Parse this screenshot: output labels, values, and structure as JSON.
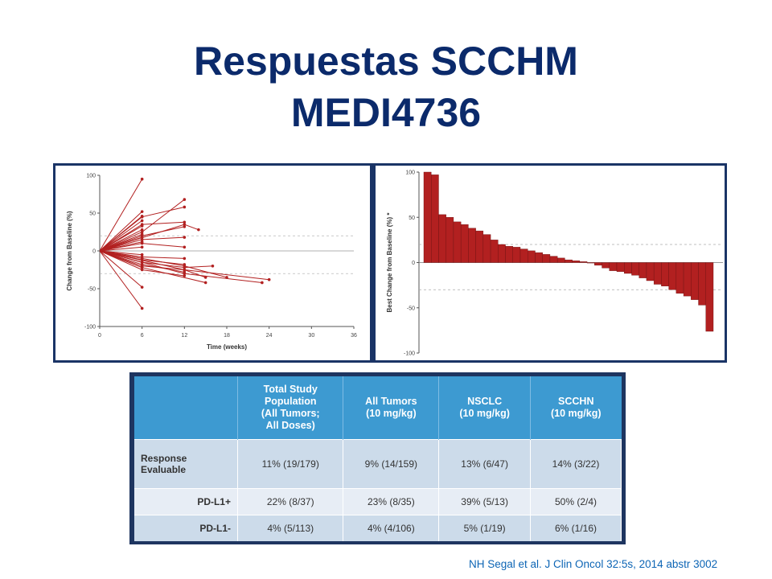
{
  "slide": {
    "title_line1": "Respuestas SCCHM",
    "title_line2": "MEDI4736",
    "citation": "NH Segal et al. J Clin Oncol 32:5s, 2014 abstr 3002",
    "colors": {
      "title": "#0b2a6b",
      "chart_red": "#b22020",
      "table_header": "#3d9ad1",
      "citation": "#0d65b5"
    }
  },
  "chart_data": [
    {
      "type": "line",
      "title": "",
      "xlabel": "Time (weeks)",
      "ylabel": "Change from Baseline (%)",
      "xlim": [
        0,
        36
      ],
      "ylim": [
        -100,
        100
      ],
      "xticks": [
        0,
        6,
        12,
        18,
        24,
        30,
        36
      ],
      "yticks": [
        -100,
        -50,
        0,
        50,
        100
      ],
      "reference_lines": [
        20,
        -30
      ],
      "series": [
        {
          "x": [
            0,
            6
          ],
          "y": [
            0,
            95
          ]
        },
        {
          "x": [
            0,
            6
          ],
          "y": [
            0,
            52
          ]
        },
        {
          "x": [
            0,
            6
          ],
          "y": [
            0,
            46
          ]
        },
        {
          "x": [
            0,
            6
          ],
          "y": [
            0,
            40
          ]
        },
        {
          "x": [
            0,
            6
          ],
          "y": [
            0,
            33
          ]
        },
        {
          "x": [
            0,
            6
          ],
          "y": [
            0,
            28
          ]
        },
        {
          "x": [
            0,
            6
          ],
          "y": [
            0,
            22
          ]
        },
        {
          "x": [
            0,
            6
          ],
          "y": [
            0,
            18
          ]
        },
        {
          "x": [
            0,
            6
          ],
          "y": [
            0,
            12
          ]
        },
        {
          "x": [
            0,
            6
          ],
          "y": [
            0,
            5
          ]
        },
        {
          "x": [
            0,
            6
          ],
          "y": [
            0,
            -5
          ]
        },
        {
          "x": [
            0,
            6
          ],
          "y": [
            0,
            -10
          ]
        },
        {
          "x": [
            0,
            6
          ],
          "y": [
            0,
            -15
          ]
        },
        {
          "x": [
            0,
            6
          ],
          "y": [
            0,
            -22
          ]
        },
        {
          "x": [
            0,
            6
          ],
          "y": [
            0,
            -48
          ]
        },
        {
          "x": [
            0,
            6
          ],
          "y": [
            0,
            -76
          ]
        },
        {
          "x": [
            0,
            6,
            12
          ],
          "y": [
            0,
            25,
            68
          ]
        },
        {
          "x": [
            0,
            6,
            12
          ],
          "y": [
            0,
            45,
            58
          ]
        },
        {
          "x": [
            0,
            6,
            12
          ],
          "y": [
            0,
            35,
            38
          ]
        },
        {
          "x": [
            0,
            6,
            12
          ],
          "y": [
            0,
            20,
            32
          ]
        },
        {
          "x": [
            0,
            6,
            12
          ],
          "y": [
            0,
            15,
            18
          ]
        },
        {
          "x": [
            0,
            6,
            12
          ],
          "y": [
            0,
            10,
            5
          ]
        },
        {
          "x": [
            0,
            6,
            12
          ],
          "y": [
            0,
            -8,
            -10
          ]
        },
        {
          "x": [
            0,
            6,
            12
          ],
          "y": [
            0,
            -12,
            -18
          ]
        },
        {
          "x": [
            0,
            6,
            12
          ],
          "y": [
            0,
            -18,
            -28
          ]
        },
        {
          "x": [
            0,
            6,
            12
          ],
          "y": [
            0,
            -25,
            -33
          ]
        },
        {
          "x": [
            0,
            12,
            14
          ],
          "y": [
            0,
            35,
            28
          ]
        },
        {
          "x": [
            0,
            6,
            12,
            16
          ],
          "y": [
            0,
            -15,
            -22,
            -20
          ]
        },
        {
          "x": [
            0,
            6,
            12,
            15
          ],
          "y": [
            0,
            -20,
            -25,
            -35
          ]
        },
        {
          "x": [
            0,
            6,
            15
          ],
          "y": [
            0,
            -22,
            -42
          ]
        },
        {
          "x": [
            0,
            12,
            18
          ],
          "y": [
            0,
            -20,
            -35
          ]
        },
        {
          "x": [
            0,
            12,
            24
          ],
          "y": [
            0,
            -25,
            -38
          ]
        },
        {
          "x": [
            0,
            12,
            23
          ],
          "y": [
            0,
            -30,
            -42
          ]
        }
      ]
    },
    {
      "type": "bar",
      "title": "",
      "xlabel": "",
      "ylabel": "Best Change from Baseline (%) *",
      "ylim": [
        -100,
        100
      ],
      "yticks": [
        -100,
        -50,
        0,
        50,
        100
      ],
      "reference_lines": [
        20,
        -30
      ],
      "values": [
        100,
        97,
        53,
        50,
        45,
        42,
        38,
        35,
        31,
        25,
        20,
        18,
        17,
        15,
        13,
        11,
        9,
        7,
        5,
        3,
        2,
        1,
        0,
        -3,
        -6,
        -9,
        -10,
        -12,
        -14,
        -17,
        -20,
        -24,
        -26,
        -30,
        -34,
        -37,
        -41,
        -47,
        -76
      ]
    }
  ],
  "table": {
    "headers": [
      "",
      "Total Study\nPopulation\n(All Tumors;\nAll Doses)",
      "All Tumors\n(10 mg/kg)",
      "NSCLC\n(10 mg/kg)",
      "SCCHN\n(10 mg/kg)"
    ],
    "rows": [
      {
        "label": "Response\nEvaluable",
        "cells": [
          "11% (19/179)",
          "9% (14/159)",
          "13% (6/47)",
          "14% (3/22)"
        ]
      },
      {
        "label": "PD-L1+",
        "cells": [
          "22% (8/37)",
          "23% (8/35)",
          "39% (5/13)",
          "50% (2/4)"
        ]
      },
      {
        "label": "PD-L1-",
        "cells": [
          "4% (5/113)",
          "4% (4/106)",
          "5% (1/19)",
          "6% (1/16)"
        ]
      }
    ]
  }
}
